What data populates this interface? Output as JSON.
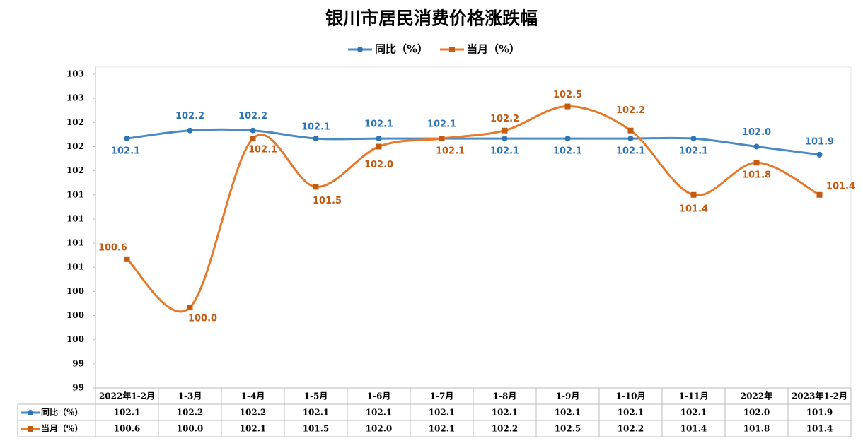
{
  "chart_data": {
    "type": "line",
    "title": "银川市居民消费价格涨跌幅",
    "categories": [
      "2022年1-2月",
      "1-3月",
      "1-4月",
      "1-5月",
      "1-6月",
      "1-7月",
      "1-8月",
      "1-9月",
      "1-10月",
      "1-11月",
      "2022年",
      "2023年1-2月"
    ],
    "series": [
      {
        "name": "同比（%）",
        "color": "#4a8ac4",
        "marker": "circle",
        "values": [
          102.1,
          102.2,
          102.2,
          102.1,
          102.1,
          102.1,
          102.1,
          102.1,
          102.1,
          102.1,
          102.0,
          101.9
        ],
        "value_labels": [
          "102.1",
          "102.2",
          "102.2",
          "102.1",
          "102.1",
          "102.1",
          "102.1",
          "102.1",
          "102.1",
          "102.1",
          "102.0",
          "101.9"
        ]
      },
      {
        "name": "当月（%）",
        "color": "#e8782a",
        "marker": "square",
        "values": [
          100.6,
          100.0,
          102.1,
          101.5,
          102.0,
          102.1,
          102.2,
          102.5,
          102.2,
          101.4,
          101.8,
          101.4
        ],
        "value_labels": [
          "100.6",
          "100.0",
          "102.1",
          "101.5",
          "102.0",
          "102.1",
          "102.2",
          "102.5",
          "102.2",
          "101.4",
          "101.8",
          "101.4"
        ]
      }
    ],
    "ylim": [
      99,
      102.9
    ],
    "yticks": [
      {
        "value": 99.0,
        "label": "99"
      },
      {
        "value": 99.3,
        "label": "99"
      },
      {
        "value": 99.6,
        "label": "100"
      },
      {
        "value": 99.9,
        "label": "100"
      },
      {
        "value": 100.2,
        "label": "100"
      },
      {
        "value": 100.5,
        "label": "101"
      },
      {
        "value": 100.8,
        "label": "101"
      },
      {
        "value": 101.1,
        "label": "101"
      },
      {
        "value": 101.4,
        "label": "101"
      },
      {
        "value": 101.7,
        "label": "102"
      },
      {
        "value": 102.0,
        "label": "102"
      },
      {
        "value": 102.3,
        "label": "102"
      },
      {
        "value": 102.6,
        "label": "103"
      },
      {
        "value": 102.9,
        "label": "103"
      }
    ],
    "smooth": true,
    "legend": "top",
    "data_table": true
  }
}
